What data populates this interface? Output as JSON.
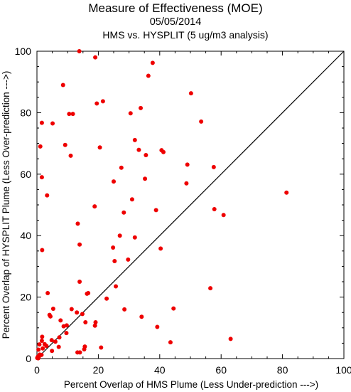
{
  "chart_data": {
    "type": "scatter",
    "title": "Measure of Effectiveness (MOE)",
    "date": "05/05/2014",
    "subtitle": "HMS vs. HYSPLIT  (5 ug/m3 analysis)",
    "xlabel": "Percent Overlap of HMS Plume (Less Under-prediction --->)",
    "ylabel": "Percent Overlap of HYSPLIT Plume (Less Over-prediction --->)",
    "xlim": [
      0,
      100
    ],
    "ylim": [
      0,
      100
    ],
    "xticks": [
      "0",
      "20",
      "40",
      "60",
      "80",
      "100"
    ],
    "yticks": [
      "0",
      "20",
      "40",
      "60",
      "80",
      "100"
    ],
    "reference_line": "y = x",
    "grid": false,
    "marker_color": "#ee0000",
    "line_color": "#000000",
    "points": [
      [
        13.8,
        100
      ],
      [
        19,
        98
      ],
      [
        37.7,
        96.2
      ],
      [
        36.3,
        92
      ],
      [
        8.5,
        89
      ],
      [
        50.2,
        86.3
      ],
      [
        21.5,
        83.7
      ],
      [
        19.5,
        83
      ],
      [
        33.8,
        81.5
      ],
      [
        10.5,
        79.6
      ],
      [
        11.7,
        79.6
      ],
      [
        30.5,
        79.8
      ],
      [
        53.5,
        77.1
      ],
      [
        1.6,
        76.7
      ],
      [
        5.1,
        76.5
      ],
      [
        31.9,
        71.1
      ],
      [
        9.2,
        69.5
      ],
      [
        1.1,
        69
      ],
      [
        20.5,
        68.7
      ],
      [
        33.2,
        67.9
      ],
      [
        40.6,
        67.8
      ],
      [
        41.2,
        67.2
      ],
      [
        35.5,
        66.2
      ],
      [
        11,
        66
      ],
      [
        49,
        63.1
      ],
      [
        57.6,
        62.3
      ],
      [
        27.5,
        62.1
      ],
      [
        1.6,
        59
      ],
      [
        35.2,
        58.5
      ],
      [
        25,
        57.6
      ],
      [
        48.7,
        57
      ],
      [
        3.3,
        53.1
      ],
      [
        81.3,
        54
      ],
      [
        31,
        51.8
      ],
      [
        18.8,
        49.5
      ],
      [
        57.8,
        48.6
      ],
      [
        38.8,
        48.3
      ],
      [
        28.3,
        47.5
      ],
      [
        60.8,
        46.7
      ],
      [
        13.3,
        43.9
      ],
      [
        27,
        40
      ],
      [
        31.9,
        39.4
      ],
      [
        13.9,
        37.1
      ],
      [
        24.8,
        36.1
      ],
      [
        40.3,
        35.8
      ],
      [
        1.7,
        35.3
      ],
      [
        29.7,
        32.2
      ],
      [
        25.3,
        31.7
      ],
      [
        13.9,
        25
      ],
      [
        25.7,
        23.5
      ],
      [
        56.5,
        22.9
      ],
      [
        3.5,
        21.3
      ],
      [
        16.7,
        21.3
      ],
      [
        16.3,
        21.1
      ],
      [
        22.7,
        19.5
      ],
      [
        11.3,
        16.1
      ],
      [
        5.3,
        16.2
      ],
      [
        28.5,
        16
      ],
      [
        44.5,
        16.3
      ],
      [
        13,
        15
      ],
      [
        14.8,
        14.5
      ],
      [
        4.1,
        14.2
      ],
      [
        4.4,
        13.7
      ],
      [
        34.1,
        13.6
      ],
      [
        7.7,
        12.4
      ],
      [
        15.8,
        11.8
      ],
      [
        19.1,
        11.8
      ],
      [
        18.9,
        10.7
      ],
      [
        9.7,
        10.8
      ],
      [
        8.7,
        10.5
      ],
      [
        39.2,
        10.3
      ],
      [
        9.6,
        8.3
      ],
      [
        1.7,
        7.1
      ],
      [
        7.3,
        6.9
      ],
      [
        63.1,
        6.4
      ],
      [
        4.8,
        6
      ],
      [
        1.6,
        5.8
      ],
      [
        6,
        5.5
      ],
      [
        43.5,
        5.3
      ],
      [
        2.5,
        4.7
      ],
      [
        0.8,
        4.6
      ],
      [
        3.1,
        4.1
      ],
      [
        7.1,
        3.8
      ],
      [
        20.9,
        3.6
      ],
      [
        15.6,
        3.9
      ],
      [
        1.9,
        3.3
      ],
      [
        15.4,
        3
      ],
      [
        0.5,
        2.9
      ],
      [
        4.9,
        2.5
      ],
      [
        13.2,
        2
      ],
      [
        14,
        2
      ],
      [
        0.9,
        1.3
      ],
      [
        1.5,
        1.2
      ],
      [
        0.3,
        0.6
      ],
      [
        0.6,
        0.5
      ],
      [
        0.1,
        0.2
      ],
      [
        0.4,
        0.1
      ]
    ]
  }
}
